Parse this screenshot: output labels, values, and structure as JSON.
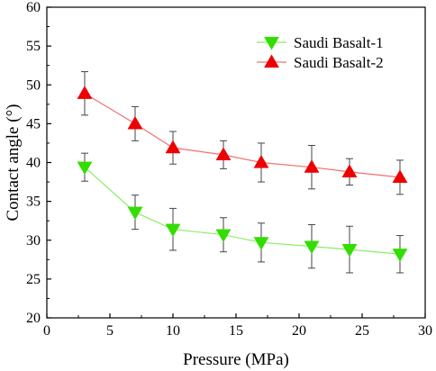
{
  "chart_data": {
    "type": "line",
    "xlabel": "Pressure (MPa)",
    "ylabel": "Contact angle (°)",
    "xlim": [
      0,
      30
    ],
    "ylim": [
      20,
      60
    ],
    "xticks": [
      0,
      5,
      10,
      15,
      20,
      25,
      30
    ],
    "yticks": [
      20,
      25,
      30,
      35,
      40,
      45,
      50,
      55,
      60
    ],
    "grid": false,
    "legend_position": "top-right",
    "x": [
      3,
      7,
      10,
      14,
      17,
      21,
      24,
      28
    ],
    "series": [
      {
        "name": "Saudi Basalt-1",
        "marker": "triangle-down",
        "color": "#33dd00",
        "line_color": "#88ee66",
        "values": [
          39.4,
          33.6,
          31.4,
          30.7,
          29.7,
          29.2,
          28.8,
          28.2
        ],
        "error": [
          1.8,
          2.2,
          2.7,
          2.2,
          2.5,
          2.8,
          3.0,
          2.4
        ]
      },
      {
        "name": "Saudi Basalt-2",
        "marker": "triangle-up",
        "color": "#ee0000",
        "line_color": "#f07070",
        "values": [
          48.9,
          45.0,
          41.9,
          41.0,
          40.0,
          39.4,
          38.8,
          38.1
        ],
        "error": [
          2.8,
          2.2,
          2.1,
          1.8,
          2.5,
          2.8,
          1.7,
          2.2
        ]
      }
    ]
  }
}
